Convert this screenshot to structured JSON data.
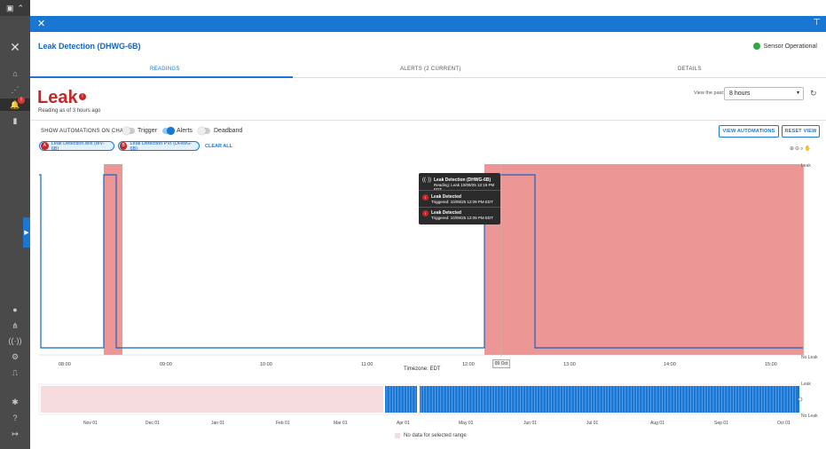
{
  "header": {
    "title": "Leak Detection (DHWG-6B)",
    "status": "Sensor Operational",
    "status_color": "#2eaa3f",
    "close_icon": "close-icon",
    "pin_icon": "pin-icon"
  },
  "tabs": [
    {
      "label": "READINGS",
      "active": true
    },
    {
      "label": "ALERTS (2 CURRENT)",
      "active": false
    },
    {
      "label": "DETAILS",
      "active": false
    }
  ],
  "reading": {
    "value": "Leak",
    "info_badge": "!",
    "as_of": "Reading as of 3 hours ago"
  },
  "range": {
    "label": "View the past:",
    "selected": "8 hours"
  },
  "automations": {
    "label": "SHOW AUTOMATIONS ON CHART",
    "toggles": [
      {
        "label": "Trigger",
        "on": false
      },
      {
        "label": "Alerts",
        "on": true
      },
      {
        "label": "Deadband",
        "on": false
      }
    ],
    "view_button": "VIEW AUTOMATIONS",
    "reset_button": "RESET VIEW"
  },
  "chips": [
    {
      "badge": "A",
      "label": "Leak Detection.Mix (MV-6B)"
    },
    {
      "badge": "B",
      "label": "Leak Detection PVI (DHWG-6B)"
    }
  ],
  "clear_all": "CLEAR ALL",
  "tooltip": {
    "title": "Leak Detection (DHWG-6B)",
    "subtitle": "Reading: Leak 10/09/25 12:19 PM EDT",
    "alerts": [
      {
        "title": "Leak Detected",
        "detail": "Triggered: 10/09/25 12:09 PM EDT"
      },
      {
        "title": "Leak Detected",
        "detail": "Triggered: 10/09/25 12:09 PM EDT"
      }
    ]
  },
  "chart_data": [
    {
      "type": "line",
      "x_ticks": [
        "08:00",
        "09:00",
        "10:00",
        "11:00",
        "12:00",
        "13:00",
        "14:00",
        "15:00"
      ],
      "y_labels": [
        "Leak",
        "No Leak"
      ],
      "xlabel": "Timezone: EDT",
      "cursor_label": "09 Oct",
      "alert_regions": [
        [
          "08:27",
          "08:38"
        ],
        [
          "12:09",
          "15:20"
        ]
      ],
      "series": [
        {
          "values_desc": "step",
          "points": [
            [
              "07:53",
              "Leak"
            ],
            [
              "07:54",
              "No Leak"
            ],
            [
              "08:25",
              "No Leak"
            ],
            [
              "08:26",
              "Leak"
            ],
            [
              "08:35",
              "Leak"
            ],
            [
              "08:36",
              "No Leak"
            ],
            [
              "12:10",
              "No Leak"
            ],
            [
              "12:11",
              "Leak"
            ],
            [
              "12:40",
              "Leak"
            ],
            [
              "12:41",
              "No Leak"
            ],
            [
              "15:20",
              "No Leak"
            ]
          ]
        }
      ],
      "region_color": "#e57373",
      "line_color": "#1565c0"
    },
    {
      "type": "area",
      "x_ticks": [
        "Nov 01",
        "Dec 01",
        "Jan 01",
        "Feb 01",
        "Mar 01",
        "Apr 01",
        "May 01",
        "Jun 01",
        "Jul 01",
        "Aug 01",
        "Sep 01",
        "Oct 01"
      ],
      "y_labels": [
        "Leak",
        "No Leak"
      ],
      "no_data_range": [
        "Oct 01",
        "Mar 25"
      ],
      "legend": "No data for selected range",
      "bar_color": "#1976d2"
    }
  ]
}
